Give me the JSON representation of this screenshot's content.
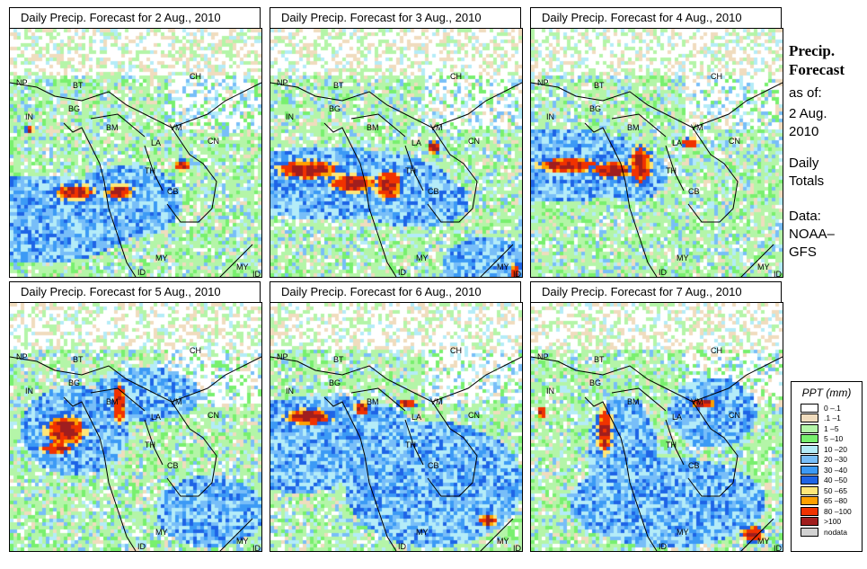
{
  "panels": [
    {
      "title": "Daily Precip. Forecast for  2 Aug., 2010"
    },
    {
      "title": "Daily Precip. Forecast for  3 Aug., 2010"
    },
    {
      "title": "Daily Precip. Forecast for  4 Aug., 2010"
    },
    {
      "title": "Daily Precip. Forecast for  5 Aug., 2010"
    },
    {
      "title": "Daily Precip. Forecast for  6 Aug., 2010"
    },
    {
      "title": "Daily Precip. Forecast for  7 Aug., 2010"
    }
  ],
  "country_labels": {
    "np": "NP",
    "bt": "BT",
    "ch": "CH",
    "in": "IN",
    "bg": "BG",
    "bm": "BM",
    "vm": "VM",
    "la": "LA",
    "cn": "CN",
    "th": "TH",
    "cb": "CB",
    "my": "MY",
    "id": "ID"
  },
  "side": {
    "title1": "Precip.",
    "title2": "Forecast",
    "asof": "as of:",
    "date1": "2 Aug.",
    "date2": "2010",
    "totals1": "Daily",
    "totals2": "Totals",
    "data1": "Data:",
    "data2": "NOAA–",
    "data3": "GFS"
  },
  "legend": {
    "title": "PPT (mm)",
    "items": [
      {
        "label": "0 –.1",
        "color": "#ffffff"
      },
      {
        "label": ".1 –1",
        "color": "#f0dcbe"
      },
      {
        "label": "1 –5",
        "color": "#b4f5a8"
      },
      {
        "label": "5 –10",
        "color": "#78f06e"
      },
      {
        "label": "10 –20",
        "color": "#b4ecf8"
      },
      {
        "label": "20 –30",
        "color": "#78bef8"
      },
      {
        "label": "30 –40",
        "color": "#3c9af5"
      },
      {
        "label": "40 –50",
        "color": "#1e64e6"
      },
      {
        "label": "50 –65",
        "color": "#ffe678"
      },
      {
        "label": "65 –80",
        "color": "#ffa000"
      },
      {
        "label": "80 –100",
        "color": "#f03200"
      },
      {
        "label": ">100",
        "color": "#a01e1e"
      },
      {
        "label": "nodata",
        "color": "#d2d2d2"
      }
    ]
  }
}
